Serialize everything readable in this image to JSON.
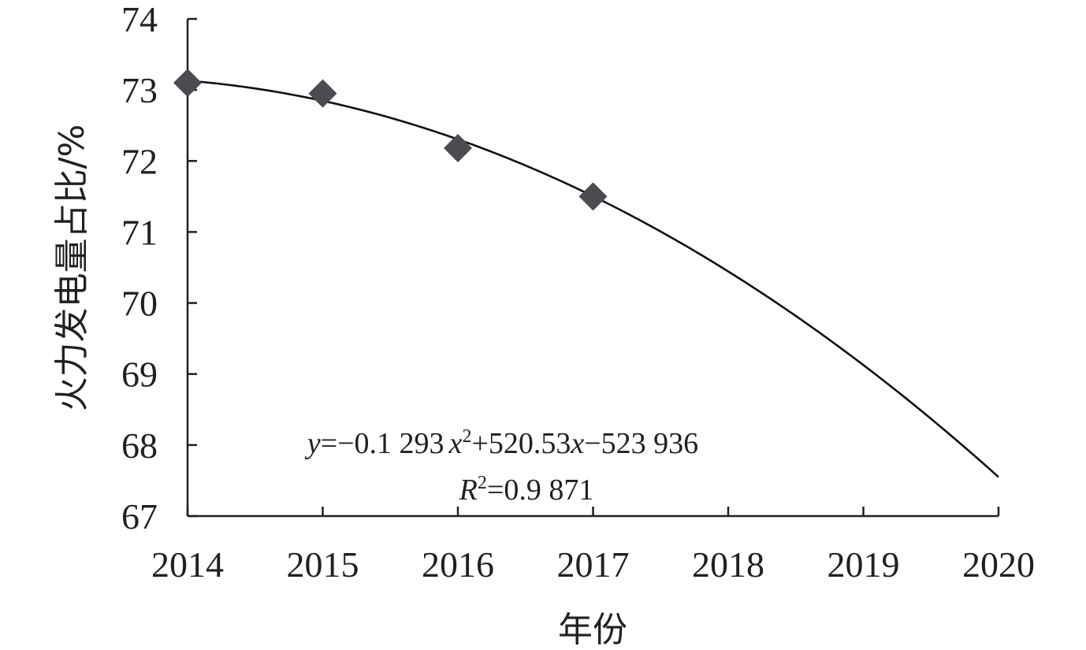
{
  "chart_data": {
    "type": "scatter",
    "xlabel": "年份",
    "ylabel": "火力发电量占比/%",
    "xlim": [
      2014,
      2020
    ],
    "ylim": [
      67,
      74
    ],
    "x_ticks": [
      "2014",
      "2015",
      "2016",
      "2017",
      "2018",
      "2019",
      "2020"
    ],
    "y_ticks": [
      "67",
      "68",
      "69",
      "70",
      "71",
      "72",
      "73",
      "74"
    ],
    "grid": false,
    "series": [
      {
        "marker": "diamond",
        "color": "#4a4c52",
        "points": [
          {
            "x": 2014,
            "y": 73.1
          },
          {
            "x": 2015,
            "y": 72.95
          },
          {
            "x": 2016,
            "y": 72.18
          },
          {
            "x": 2017,
            "y": 71.5
          }
        ]
      }
    ],
    "trendline": {
      "type": "polynomial",
      "color": "#111111",
      "coefficients": {
        "a": -0.1293,
        "b": 520.53,
        "c": -523936
      },
      "x_range": [
        2014,
        2020
      ],
      "y_start": 73.13,
      "y_end": 67.55
    },
    "annotations": {
      "equation": {
        "y": "y",
        "mid1": "=−0.1 293",
        "x": "x",
        "sup": "2",
        "mid2": "+520.53",
        "x2": "x",
        "tail": "−523 936"
      },
      "r2": {
        "R": "R",
        "sup": "2",
        "tail": "=0.9 871"
      }
    }
  }
}
